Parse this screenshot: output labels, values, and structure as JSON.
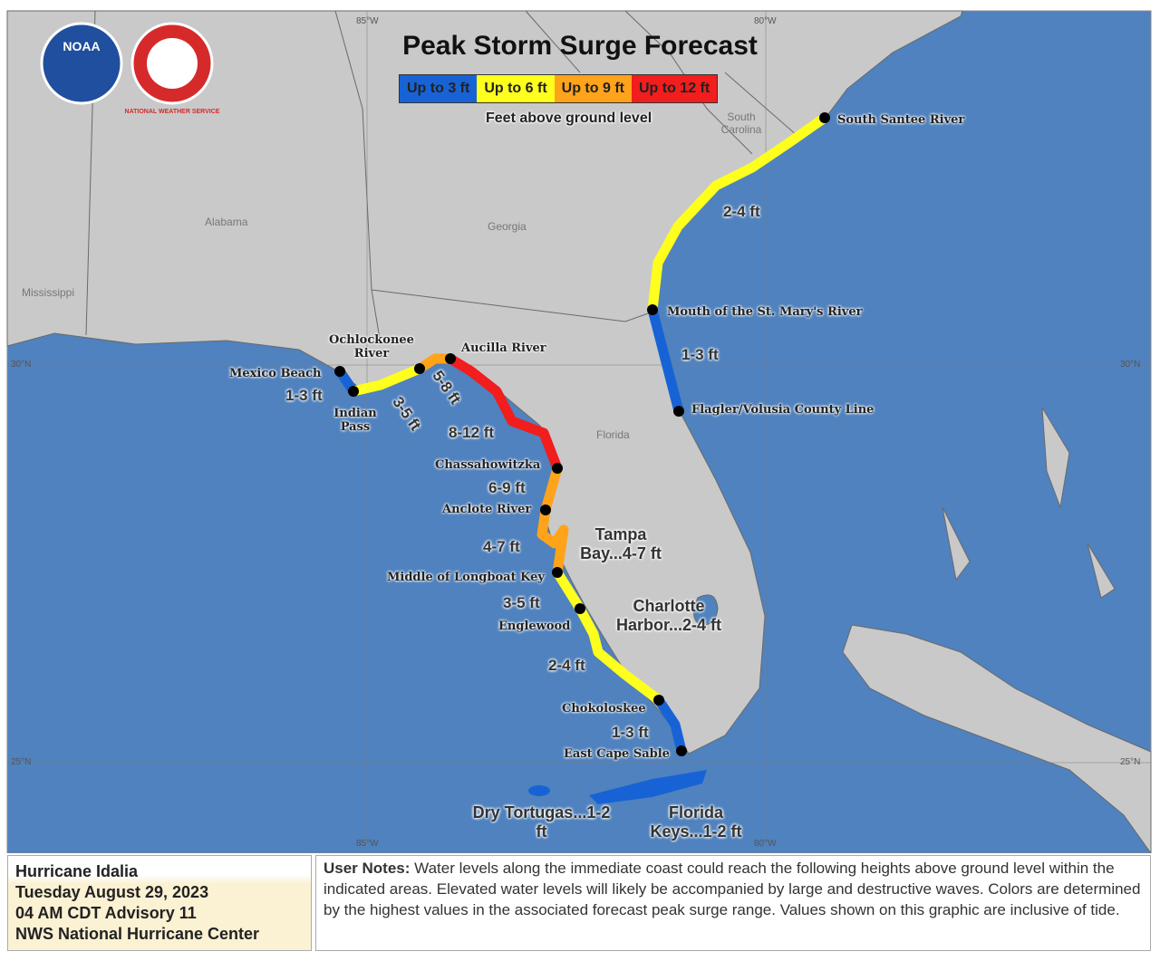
{
  "title": "Peak Storm Surge Forecast",
  "logos": {
    "noaa": "NOAA",
    "nws": "NATIONAL WEATHER SERVICE"
  },
  "legend": {
    "items": [
      {
        "label": "Up to 3 ft",
        "color": "#1763d6"
      },
      {
        "label": "Up to 6 ft",
        "color": "#ffff1e"
      },
      {
        "label": "Up to 9 ft",
        "color": "#ffa31a"
      },
      {
        "label": "Up to 12 ft",
        "color": "#f21d1d"
      }
    ],
    "caption": "Feet above ground level"
  },
  "grid_labels": [
    "85°W",
    "80°W",
    "30°N",
    "25°N"
  ],
  "states": [
    "South Carolina",
    "Alabama",
    "Georgia",
    "Mississippi",
    "Florida"
  ],
  "locations": [
    "South Santee River",
    "Mouth of the St. Mary's River",
    "Flagler/Volusia County Line",
    "Mexico Beach",
    "Ochlockonee River",
    "Aucilla River",
    "Indian Pass",
    "Chassahowitzka",
    "Anclote River",
    "Middle of Longboat Key",
    "Englewood",
    "Chokoloskee",
    "East Cape Sable"
  ],
  "surge_labels": [
    "2-4 ft",
    "1-3 ft",
    "1-3 ft",
    "3-5 ft",
    "5-8 ft",
    "8-12 ft",
    "6-9 ft",
    "4-7 ft",
    "3-5 ft",
    "2-4 ft",
    "1-3 ft"
  ],
  "areas": [
    "Tampa Bay...4-7 ft",
    "Charlotte Harbor...2-4 ft",
    "Dry Tortugas...1-2 ft",
    "Florida Keys...1-2 ft"
  ],
  "info": {
    "storm": "Hurricane Idalia",
    "date": "Tuesday August 29, 2023",
    "advisory": "04 AM CDT Advisory 11",
    "center": "NWS National Hurricane Center"
  },
  "user_notes": {
    "heading": "User Notes:",
    "text": "Water levels along the immediate coast could reach the following heights above ground level within the indicated areas. Elevated water levels will likely be accompanied by large and destructive waves. Colors are determined by the highest values in the associated forecast peak surge range. Values shown on this graphic are inclusive of tide."
  }
}
